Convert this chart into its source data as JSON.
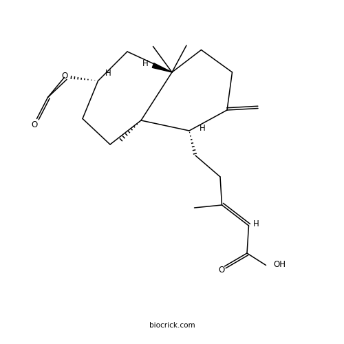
{
  "background_color": "#ffffff",
  "line_color": "#000000",
  "line_width": 1.1,
  "font_size": 8.5,
  "watermark": "biocrick.com",
  "watermark_size": 7.5,
  "watermark_color": "#666666",
  "xlim": [
    0,
    10
  ],
  "ylim": [
    0,
    10
  ]
}
